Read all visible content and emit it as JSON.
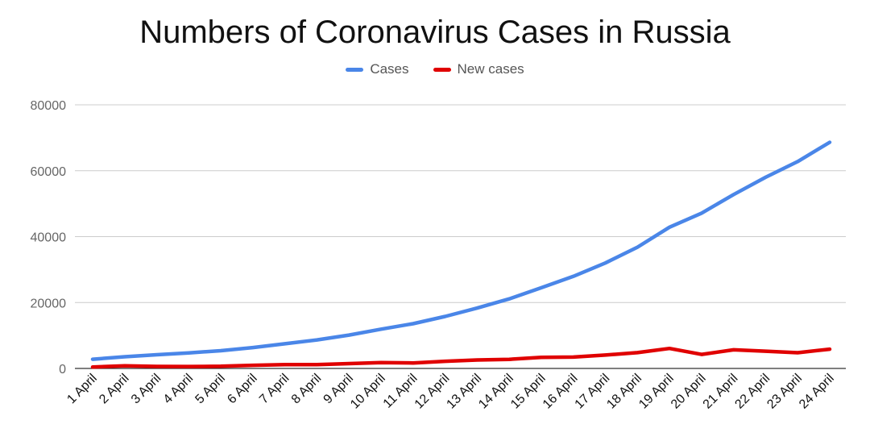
{
  "chart_data": {
    "type": "line",
    "title": "Numbers of Coronavirus Cases in Russia",
    "xlabel": "",
    "ylabel": "",
    "ylim": [
      0,
      80000
    ],
    "yticks": [
      "0",
      "20000",
      "40000",
      "60000",
      "80000"
    ],
    "grid": true,
    "legend_placement": "top",
    "categories": [
      "1 April",
      "2 April",
      "3 April",
      "4 April",
      "5 April",
      "6 April",
      "7 April",
      "8 April",
      "9 April",
      "10 April",
      "11 April",
      "12 April",
      "13 April",
      "14 April",
      "15 April",
      "16 April",
      "17 April",
      "18 April",
      "19 April",
      "20 April",
      "21 April",
      "22 April",
      "23 April",
      "24 April"
    ],
    "series": [
      {
        "name": "Cases",
        "color": "#4a86e8",
        "values": [
          2777,
          3548,
          4149,
          4731,
          5389,
          6343,
          7497,
          8672,
          10131,
          11917,
          13584,
          15770,
          18328,
          21102,
          24490,
          27938,
          32008,
          36793,
          42853,
          47121,
          52763,
          57999,
          62773,
          68622
        ]
      },
      {
        "name": "New cases",
        "color": "#e00000",
        "values": [
          440,
          771,
          601,
          582,
          658,
          954,
          1154,
          1175,
          1459,
          1786,
          1667,
          2186,
          2558,
          2774,
          3388,
          3448,
          4070,
          4785,
          6060,
          4268,
          5642,
          5236,
          4774,
          5849
        ]
      }
    ]
  }
}
